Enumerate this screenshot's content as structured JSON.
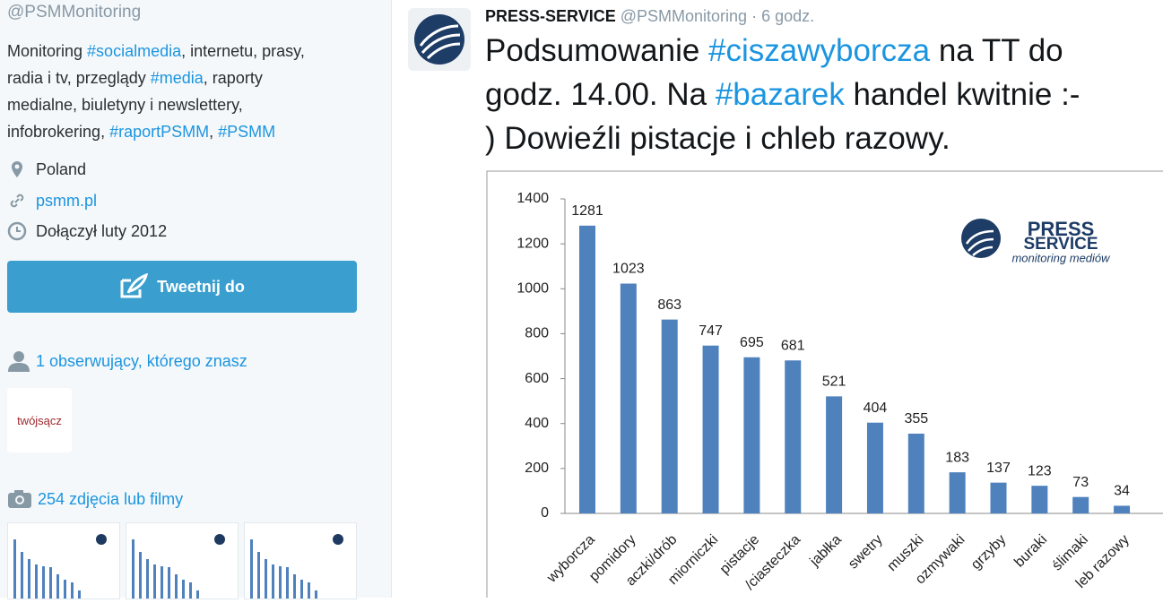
{
  "sidebar": {
    "handle": "@PSMMonitoring",
    "bio": [
      [
        {
          "text": "Monitoring "
        },
        {
          "text": "#socialmedia",
          "link": true
        },
        {
          "text": ", internetu, prasy,"
        }
      ],
      [
        {
          "text": "radia i tv, przeglądy "
        },
        {
          "text": "#media",
          "link": true
        },
        {
          "text": ", raporty"
        }
      ],
      [
        {
          "text": "medialne, biuletyny i newslettery,"
        }
      ],
      [
        {
          "text": "infobrokering, "
        },
        {
          "text": "#raportPSMM",
          "link": true
        },
        {
          "text": ", "
        },
        {
          "text": "#PSMM",
          "link": true
        }
      ]
    ],
    "location": "Poland",
    "website": "psmm.pl",
    "joined": "Dołączył luty 2012",
    "tweet_button": "Tweetnij do",
    "followers_known": "1 obserwujący, którego znasz",
    "follower_avatar": "twójsącz",
    "media": "254 zdjęcia lub filmy"
  },
  "tweet": {
    "name": "PRESS-SERVICE",
    "handle": "@PSMMonitoring",
    "time": "· 6 godz.",
    "text": [
      [
        {
          "text": "Podsumowanie "
        },
        {
          "text": "#ciszawyborcza",
          "link": true
        },
        {
          "text": " na TT do"
        }
      ],
      [
        {
          "text": "godz. 14.00. Na "
        },
        {
          "text": "#bazarek",
          "link": true
        },
        {
          "text": " handel kwitnie :-"
        }
      ],
      [
        {
          "text": ") Dowieźli pistacje i chleb razowy."
        }
      ]
    ],
    "chart": {
      "type": "bar",
      "logo": [
        "PRESS",
        "SERVICE",
        "monitoring mediów"
      ],
      "categories": [
        "wyborcza",
        "pomidory",
        "aczki/drób",
        "miorniczki",
        "pistacje",
        "/ciasteczka",
        "jabłka",
        "swetry",
        "muszki",
        "ozmywaki",
        "grzyby",
        "buraki",
        "ślimaki",
        "leb razowy"
      ],
      "values": [
        1281,
        1023,
        863,
        747,
        695,
        681,
        521,
        404,
        355,
        183,
        137,
        123,
        73,
        34
      ],
      "color": "#4f81bd",
      "ylim": [
        0,
        1400
      ],
      "yticks": [
        0,
        200,
        400,
        600,
        800,
        1000,
        1200,
        1400
      ]
    }
  }
}
